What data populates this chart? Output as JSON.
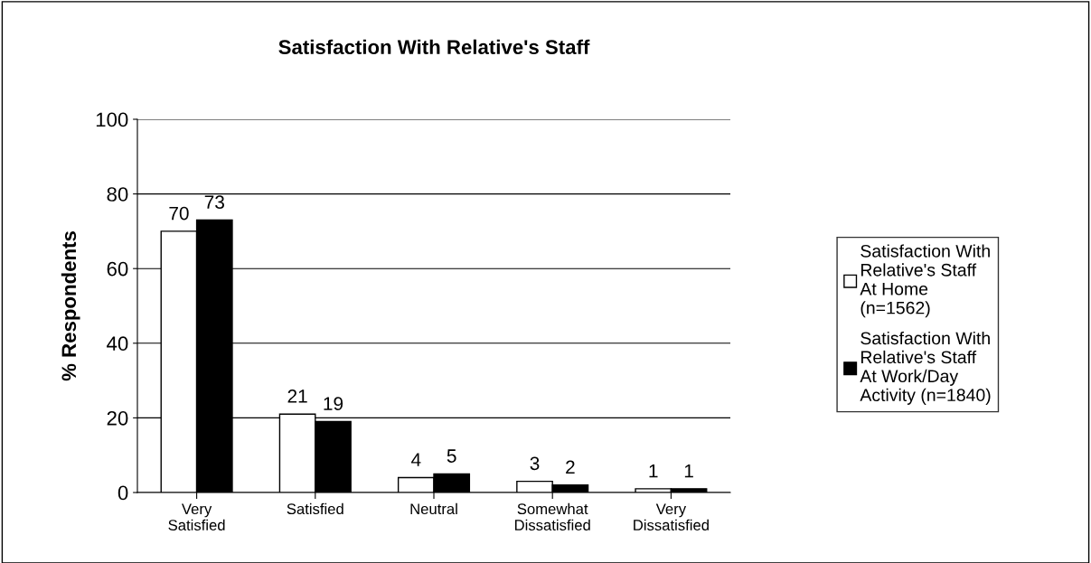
{
  "chart_data": {
    "type": "bar",
    "title": "Satisfaction With Relative's Staff",
    "ylabel": "% Respondents",
    "categories": [
      "Very\nSatisfied",
      "Satisfied",
      "Neutral",
      "Somewhat\nDissatisfied",
      "Very\nDissatisfied"
    ],
    "series": [
      {
        "name": "Satisfaction With\nRelative's Staff\nAt Home\n(n=1562)",
        "color": "#ffffff",
        "values": [
          70,
          21,
          4,
          3,
          1
        ]
      },
      {
        "name": "Satisfaction With\nRelative's Staff\nAt Work/Day\nActivity (n=1840)",
        "color": "#000000",
        "values": [
          73,
          19,
          5,
          2,
          1
        ]
      }
    ],
    "ylim": [
      0,
      100
    ],
    "yticks": [
      0,
      20,
      40,
      60,
      80,
      100
    ],
    "grid": "y",
    "legend": "right",
    "data_labels": true
  }
}
